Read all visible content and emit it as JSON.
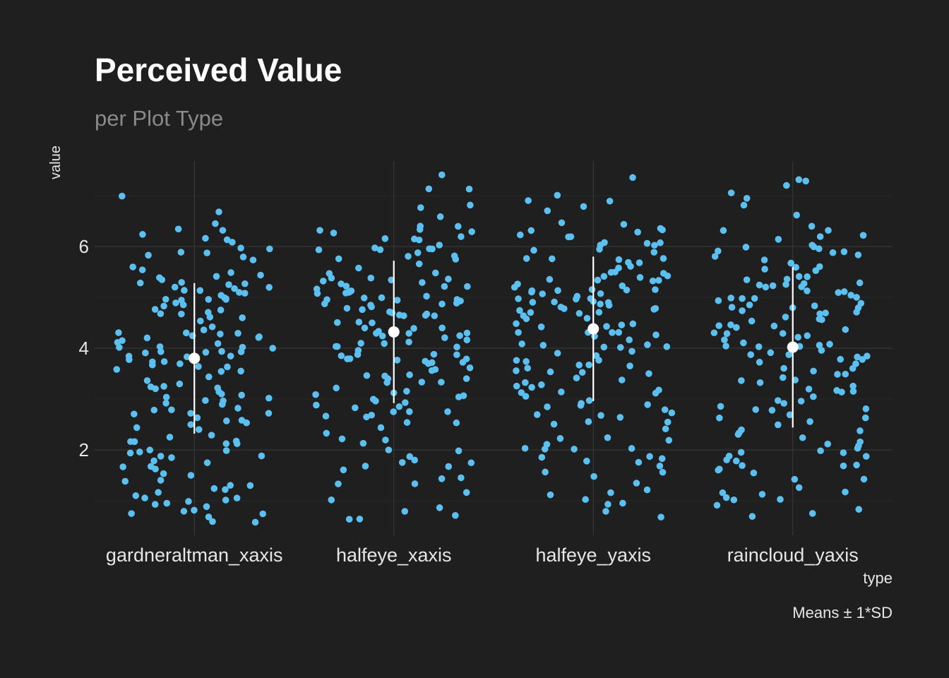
{
  "title": "Perceived Value",
  "subtitle": "per Plot Type",
  "caption": "Means ± 1*SD",
  "chart_data": {
    "type": "scatter",
    "xlabel": "type",
    "ylabel": "value",
    "categories": [
      "gardneraltman_xaxis",
      "halfeye_xaxis",
      "halfeye_yaxis",
      "raincloud_yaxis"
    ],
    "ylim": [
      0.3,
      7.5
    ],
    "yticks": [
      2,
      4,
      6
    ],
    "grid": true,
    "point_color": "#5bbff0",
    "summary_color": "#ffffff",
    "summary": [
      {
        "category": "gardneraltman_xaxis",
        "mean": 3.8,
        "sd": 1.48
      },
      {
        "category": "halfeye_xaxis",
        "mean": 4.32,
        "sd": 1.4
      },
      {
        "category": "halfeye_yaxis",
        "mean": 4.38,
        "sd": 1.42
      },
      {
        "category": "raincloud_yaxis",
        "mean": 4.02,
        "sd": 1.58
      }
    ],
    "points": [
      {
        "category": "gardneraltman_xaxis",
        "values": [
          6.7,
          6.4,
          6.3,
          6.2,
          6.1,
          6.1,
          6.0,
          5.9,
          5.8,
          5.7,
          5.6,
          5.5,
          5.4,
          5.4,
          5.3,
          5.3,
          5.3,
          5.2,
          5.2,
          5.2,
          5.1,
          5.1,
          5.1,
          5.0,
          5.0,
          5.0,
          5.0,
          4.9,
          4.9,
          4.9,
          4.8,
          4.8,
          4.7,
          4.7,
          4.6,
          4.5,
          4.4,
          4.3,
          4.3,
          4.3,
          4.2,
          4.2,
          4.2,
          4.1,
          4.1,
          4.0,
          4.0,
          4.0,
          3.9,
          3.9,
          3.9,
          3.8,
          3.8,
          3.8,
          3.7,
          3.7,
          3.7,
          3.6,
          3.6,
          3.5,
          3.4,
          3.3,
          3.2,
          3.2,
          3.1,
          3.1,
          3.0,
          3.0,
          2.9,
          2.9,
          2.8,
          2.8,
          2.7,
          2.7,
          2.6,
          2.6,
          2.5,
          2.4,
          2.3,
          2.3,
          2.2,
          2.2,
          2.1,
          2.0,
          2.0,
          1.9,
          1.9,
          1.8,
          1.7,
          1.7,
          1.6,
          1.5,
          1.4,
          1.3,
          1.2,
          1.2,
          1.1,
          1.1,
          1.0,
          1.0,
          0.9,
          0.8,
          0.7,
          0.7,
          0.6,
          0.6,
          7.0,
          6.3,
          6.0,
          5.9,
          5.5,
          5.3,
          5.2,
          5.1,
          5.0,
          4.8,
          4.6,
          4.4,
          4.2,
          4.0,
          3.9,
          3.8,
          3.6,
          3.4,
          3.2,
          3.1,
          3.0,
          2.8,
          2.6,
          2.5,
          2.2,
          2.0,
          1.8,
          1.5,
          1.4,
          1.2,
          1.1,
          0.9,
          0.8,
          6.2,
          5.8,
          5.4,
          5.0,
          4.7,
          4.3,
          4.1,
          3.9,
          3.7,
          3.5,
          3.3,
          3.0,
          2.7,
          2.4,
          2.1,
          1.9,
          1.7,
          1.3,
          1.0,
          0.7
        ]
      },
      {
        "category": "halfeye_xaxis",
        "values": [
          7.4,
          7.1,
          7.1,
          6.8,
          6.8,
          6.6,
          6.4,
          6.4,
          6.3,
          6.3,
          6.3,
          6.2,
          6.2,
          6.1,
          6.0,
          6.0,
          6.0,
          5.9,
          5.9,
          5.9,
          5.8,
          5.8,
          5.7,
          5.6,
          5.5,
          5.4,
          5.4,
          5.3,
          5.3,
          5.3,
          5.2,
          5.2,
          5.2,
          5.1,
          5.1,
          5.1,
          5.0,
          5.0,
          5.0,
          5.0,
          4.9,
          4.9,
          4.9,
          4.9,
          4.8,
          4.8,
          4.8,
          4.7,
          4.7,
          4.7,
          4.6,
          4.6,
          4.5,
          4.5,
          4.4,
          4.4,
          4.3,
          4.3,
          4.3,
          4.2,
          4.2,
          4.2,
          4.1,
          4.1,
          4.0,
          4.0,
          4.0,
          3.9,
          3.9,
          3.9,
          3.8,
          3.8,
          3.8,
          3.7,
          3.7,
          3.7,
          3.6,
          3.6,
          3.5,
          3.5,
          3.4,
          3.3,
          3.3,
          3.2,
          3.1,
          3.1,
          3.0,
          3.0,
          2.9,
          2.9,
          2.8,
          2.8,
          2.7,
          2.7,
          2.6,
          2.5,
          2.4,
          2.3,
          2.2,
          2.1,
          2.0,
          1.9,
          1.8,
          1.8,
          1.7,
          1.7,
          1.6,
          1.4,
          1.3,
          1.3,
          1.0,
          0.9,
          0.8,
          0.7,
          0.6,
          0.6,
          6.3,
          6.0,
          5.7,
          5.5,
          5.3,
          5.1,
          4.9,
          4.7,
          4.5,
          4.3,
          4.1,
          3.9,
          3.7,
          3.5,
          3.3,
          3.1,
          2.9,
          2.7,
          2.5,
          2.2,
          2.0,
          1.7,
          1.5,
          1.2,
          6.1,
          5.8,
          5.4,
          5.2,
          5.0,
          4.8,
          4.6,
          4.4,
          4.2,
          4.0,
          3.8,
          3.6,
          3.4,
          3.2,
          3.0,
          2.8
        ]
      },
      {
        "category": "halfeye_yaxis",
        "values": [
          7.4,
          7.0,
          6.9,
          6.9,
          6.8,
          6.7,
          6.4,
          6.4,
          6.3,
          6.3,
          6.3,
          6.2,
          6.2,
          6.1,
          6.1,
          6.0,
          6.0,
          5.9,
          5.9,
          5.8,
          5.8,
          5.7,
          5.7,
          5.6,
          5.6,
          5.5,
          5.5,
          5.4,
          5.4,
          5.4,
          5.3,
          5.3,
          5.3,
          5.2,
          5.2,
          5.2,
          5.2,
          5.1,
          5.1,
          5.1,
          5.1,
          5.0,
          5.0,
          5.0,
          5.0,
          4.9,
          4.9,
          4.9,
          4.9,
          4.8,
          4.8,
          4.8,
          4.8,
          4.7,
          4.7,
          4.7,
          4.6,
          4.6,
          4.5,
          4.5,
          4.4,
          4.4,
          4.3,
          4.3,
          4.3,
          4.2,
          4.2,
          4.1,
          4.1,
          4.0,
          4.0,
          3.9,
          3.9,
          3.8,
          3.8,
          3.7,
          3.7,
          3.6,
          3.6,
          3.5,
          3.5,
          3.4,
          3.3,
          3.3,
          3.2,
          3.2,
          3.1,
          3.1,
          3.0,
          2.9,
          2.9,
          2.8,
          2.7,
          2.7,
          2.6,
          2.6,
          2.5,
          2.2,
          2.2,
          2.1,
          2.0,
          2.0,
          1.9,
          1.9,
          1.8,
          1.8,
          1.7,
          1.6,
          1.3,
          1.2,
          1.1,
          1.0,
          1.0,
          0.9,
          0.8,
          0.7,
          6.5,
          6.2,
          5.9,
          5.7,
          5.5,
          5.3,
          5.1,
          4.9,
          4.7,
          4.5,
          4.3,
          4.1,
          3.9,
          3.7,
          3.5,
          3.3,
          3.1,
          2.9,
          2.7,
          2.5,
          2.2,
          2.0,
          1.8,
          1.5,
          1.2,
          6.1,
          5.8,
          5.4,
          5.1,
          4.8,
          4.6,
          4.3,
          4.0,
          3.7,
          3.4,
          3.1,
          2.8,
          2.4,
          2.0,
          1.6
        ]
      },
      {
        "category": "raincloud_yaxis",
        "values": [
          7.3,
          7.3,
          7.2,
          7.1,
          6.9,
          6.8,
          6.6,
          6.4,
          6.3,
          6.3,
          6.2,
          6.1,
          6.0,
          6.0,
          6.0,
          5.9,
          5.9,
          5.8,
          5.8,
          5.7,
          5.7,
          5.6,
          5.6,
          5.5,
          5.4,
          5.4,
          5.3,
          5.3,
          5.3,
          5.2,
          5.2,
          5.2,
          5.1,
          5.1,
          5.1,
          5.0,
          5.0,
          5.0,
          4.9,
          4.9,
          4.9,
          4.8,
          4.8,
          4.8,
          4.7,
          4.7,
          4.7,
          4.6,
          4.6,
          4.5,
          4.5,
          4.4,
          4.4,
          4.3,
          4.3,
          4.3,
          4.2,
          4.2,
          4.1,
          4.1,
          4.0,
          4.0,
          4.0,
          3.9,
          3.9,
          3.9,
          3.8,
          3.8,
          3.7,
          3.7,
          3.6,
          3.6,
          3.5,
          3.4,
          3.4,
          3.3,
          3.3,
          3.2,
          3.1,
          3.0,
          3.0,
          2.9,
          2.8,
          2.8,
          2.7,
          2.6,
          2.5,
          2.4,
          2.3,
          2.2,
          2.2,
          2.1,
          2.0,
          2.0,
          1.9,
          1.9,
          1.8,
          1.8,
          1.7,
          1.7,
          1.6,
          1.5,
          1.4,
          1.3,
          1.2,
          1.1,
          1.0,
          1.0,
          0.9,
          0.8,
          0.8,
          0.7,
          6.2,
          5.9,
          5.6,
          5.4,
          5.2,
          5.0,
          4.8,
          4.6,
          4.4,
          4.2,
          4.0,
          3.8,
          3.6,
          3.4,
          3.2,
          3.0,
          2.8,
          2.6,
          2.4,
          2.1,
          1.9,
          1.7,
          1.4,
          1.1,
          6.0,
          5.7,
          5.3,
          5.0,
          4.7,
          4.4,
          4.1,
          3.8,
          3.5,
          3.2,
          2.9,
          2.6,
          2.3,
          2.0,
          1.6,
          1.2
        ]
      }
    ]
  }
}
